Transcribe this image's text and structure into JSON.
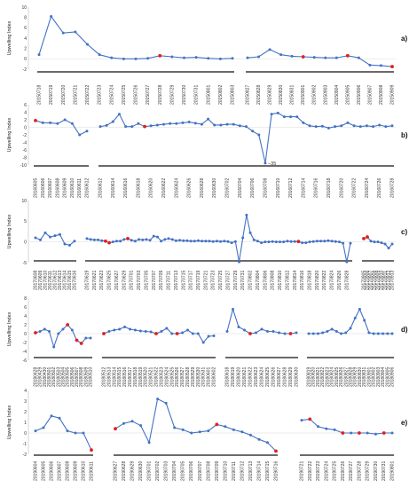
{
  "colors": {
    "line": "#4472c4",
    "marker": "#4472c4",
    "highlight": "#e02020",
    "axis": "#bbbbbb",
    "bar": "#111111"
  },
  "chart_data": [
    {
      "type": "line",
      "panel": "a)",
      "ylabel": "Upwelling Index",
      "ylim": [
        -2,
        10
      ],
      "yticks": [
        -2,
        0,
        2,
        4,
        6,
        8,
        10
      ],
      "groups": [
        {
          "dates": [
            "20150718",
            "20150719",
            "20150720",
            "20150721",
            "20150722",
            "20150723",
            "20150724",
            "20150725",
            "20150726",
            "20150727",
            "20150728",
            "20150729",
            "20150730",
            "20150731",
            "20150801",
            "20150802",
            "20150803"
          ],
          "values": [
            0.8,
            8.2,
            5,
            5.2,
            2.8,
            0.8,
            0.2,
            0,
            0,
            0.1,
            0.6,
            0.4,
            0.2,
            0.3,
            0.1,
            0,
            0.1
          ],
          "highlight": [
            10
          ]
        },
        {
          "dates": [
            "20150827",
            "20150828",
            "20150829",
            "20150830",
            "20150831",
            "20150901",
            "20150902",
            "20150903",
            "20150904",
            "20150905",
            "20150906",
            "20150907",
            "20150908",
            "20150909"
          ],
          "values": [
            0.2,
            0.4,
            1.8,
            0.8,
            0.5,
            0.4,
            0.3,
            0.2,
            0.2,
            0.6,
            0.2,
            -1.2,
            -1.3,
            -1.5
          ],
          "highlight": [
            5,
            9,
            13
          ]
        }
      ]
    },
    {
      "type": "line",
      "panel": "b)",
      "ylabel": "Upwelling Index",
      "ylim": [
        -10,
        6
      ],
      "yticks": [
        -10,
        -8,
        -6,
        -4,
        -2,
        0,
        2,
        4,
        6
      ],
      "annotation": "−35",
      "groups": [
        {
          "dates": [
            "20160605",
            "20160606",
            "20160607",
            "20160608",
            "20160609",
            "20160610",
            "20160611",
            "20160612"
          ],
          "values": [
            1.8,
            1.2,
            1.2,
            1,
            2,
            1,
            -2,
            -1
          ],
          "highlight": [
            0
          ]
        },
        {
          "dates": [
            "20160612",
            "20160613",
            "20160614",
            "20160615",
            "20160616",
            "20160617",
            "20160618",
            "20160619",
            "20160620",
            "20160621",
            "20160622",
            "20160623",
            "20160624",
            "20160625",
            "20160626",
            "20160627",
            "20160628",
            "20160629",
            "20160630",
            "20160701",
            "20160702",
            "20160703",
            "20160704",
            "20160705",
            "20160706",
            "20160707",
            "20160708",
            "20160709",
            "20160710",
            "20160711",
            "20160712",
            "20160713",
            "20160714",
            "20160715",
            "20160716",
            "20160717",
            "20160718",
            "20160719",
            "20160720",
            "20160721",
            "20160722",
            "20160723",
            "20160724",
            "20160725",
            "20160726",
            "20160727",
            "20160728"
          ],
          "values": [
            0.2,
            0.5,
            1.5,
            3.5,
            0.2,
            0.2,
            1,
            0.2,
            0.4,
            0.6,
            0.8,
            1.0,
            1.0,
            1.2,
            1.4,
            1.1,
            0.8,
            2.2,
            0.6,
            0.6,
            0.8,
            0.8,
            0.4,
            0.2,
            -1,
            -2,
            -9.5,
            3.5,
            3.8,
            2.8,
            2.8,
            2.8,
            1.2,
            0.4,
            0.2,
            0.3,
            -0.2,
            0.2,
            0.4,
            1.2,
            0.4,
            0.2,
            0.4,
            0.2,
            0.6,
            0.2,
            0.4
          ],
          "highlight": [
            7
          ]
        }
      ]
    },
    {
      "type": "line",
      "panel": "c)",
      "ylabel": "Upwelling Index",
      "ylim": [
        -5,
        10
      ],
      "yticks": [
        -5,
        0,
        5,
        10
      ],
      "groups": [
        {
          "dates": [
            "20170608",
            "20170609",
            "20170610",
            "20170611",
            "20170612",
            "20170613",
            "20170614",
            "20170615",
            "20170616"
          ],
          "values": [
            1,
            0.5,
            2.2,
            1.2,
            1.5,
            1.8,
            -0.5,
            -0.8,
            0.2
          ],
          "highlight": []
        },
        {
          "dates": [
            "20170619",
            "20170620",
            "20170621",
            "20170622",
            "20170623",
            "20170624",
            "20170625",
            "20170626",
            "20170627",
            "20170628",
            "20170629",
            "20170630",
            "20170701",
            "20170702",
            "20170703",
            "20170704",
            "20170705",
            "20170706",
            "20170707",
            "20170708",
            "20170709",
            "20170710",
            "20170711",
            "20170712",
            "20170713",
            "20170714",
            "20170715",
            "20170716",
            "20170717",
            "20170718",
            "20170719",
            "20170720",
            "20170721",
            "20170722",
            "20170723",
            "20170724",
            "20170725",
            "20170726",
            "20170727",
            "20170728",
            "20170729",
            "20170730",
            "20170731",
            "20170801",
            "20170802",
            "20170803",
            "20170804",
            "20170805",
            "20170806",
            "20170807",
            "20170808",
            "20170809",
            "20170810",
            "20170811",
            "20170812",
            "20170813",
            "20170814",
            "20170815",
            "20170816",
            "20170817",
            "20170818",
            "20170819",
            "20170820",
            "20170821",
            "20170822",
            "20170823",
            "20170824",
            "20170825",
            "20170826",
            "20170827",
            "20170828",
            "20170829"
          ],
          "values": [
            0.8,
            0.6,
            0.5,
            0.5,
            0.3,
            0.2,
            -0.2,
            0,
            0.2,
            0.2,
            0.6,
            0.8,
            0.4,
            0.2,
            0.6,
            0.5,
            0.6,
            0.4,
            1.4,
            1.2,
            0.2,
            0.6,
            0.8,
            0.6,
            0.3,
            0.4,
            0.3,
            0.3,
            0.2,
            0.2,
            0.3,
            0.2,
            0.2,
            0.2,
            0.1,
            0.2,
            0.1,
            0.2,
            0.1,
            -0.2,
            0.1,
            -4.8,
            1,
            6.5,
            2.2,
            0.5,
            0.2,
            -0.2,
            0,
            0,
            0.1,
            0,
            0,
            0,
            0.2,
            0.1,
            0.1,
            0.1,
            -0.2,
            -0.2,
            0,
            0.1,
            0.2,
            0.2,
            0.2,
            0.3,
            0.2,
            0.1,
            0,
            -0.3,
            -4.8,
            -0.3
          ],
          "highlight": [
            5,
            6,
            11,
            57
          ]
        },
        {
          "dates": [
            "20170905",
            "20170906",
            "20170907",
            "20170908",
            "20170909",
            "20170910",
            "20170911",
            "20170912",
            "20170913"
          ],
          "values": [
            0.8,
            1.2,
            0.2,
            0,
            0,
            -0.2,
            -0.5,
            -1.5,
            -0.5
          ],
          "highlight": [
            0,
            1
          ]
        }
      ]
    },
    {
      "type": "line",
      "panel": "d)",
      "ylabel": "Upwelling Index",
      "ylim": [
        -6,
        8
      ],
      "yticks": [
        -6,
        -4,
        -2,
        0,
        2,
        4,
        6,
        8
      ],
      "groups": [
        {
          "dates": [
            "20180428",
            "20180429",
            "20180430",
            "20180501",
            "20180502",
            "20180503",
            "20180504",
            "20180505",
            "20180506",
            "20180507",
            "20180508",
            "20180509",
            "20180510"
          ],
          "values": [
            0.2,
            0.5,
            1,
            0.5,
            -3,
            0,
            1,
            2,
            0.8,
            -1.5,
            -2.2,
            -1,
            -1
          ],
          "highlight": [
            0,
            7,
            9,
            10
          ]
        },
        {
          "dates": [
            "20180512",
            "20180513",
            "20180514",
            "20180515",
            "20180516",
            "20180517",
            "20180518",
            "20180519",
            "20180520",
            "20180521",
            "20180522",
            "20180523",
            "20180524",
            "20180525",
            "20180526",
            "20180527",
            "20180528",
            "20180529",
            "20180530",
            "20180531",
            "20180601",
            "20180602"
          ],
          "values": [
            0,
            0.5,
            0.8,
            1,
            1.5,
            1,
            0.8,
            0.6,
            0.5,
            0.4,
            0,
            0.5,
            1.2,
            0,
            0,
            0.2,
            0.8,
            0,
            0,
            -2,
            -0.6,
            -0.5
          ],
          "highlight": [
            0,
            10,
            14
          ]
        },
        {
          "dates": [
            "20180618",
            "20180619",
            "20180620",
            "20180621",
            "20180622",
            "20180623",
            "20180624",
            "20180625",
            "20180626",
            "20180627",
            "20180628",
            "20180629",
            "20180630"
          ],
          "values": [
            0.5,
            5.5,
            1.5,
            0.8,
            0,
            0.2,
            1,
            0.5,
            0.5,
            0.2,
            0,
            0,
            0.2
          ],
          "highlight": [
            4,
            11
          ]
        },
        {
          "dates": [
            "20180819",
            "20180820",
            "20180821",
            "20180822",
            "20180823",
            "20180824",
            "20180825",
            "20180826",
            "20180827",
            "20180828",
            "20180829",
            "20180830",
            "20180831",
            "20180901",
            "20180902",
            "20180903",
            "20180904",
            "20180905",
            "20180906"
          ],
          "values": [
            0,
            0,
            0,
            0.2,
            0.5,
            1,
            0.5,
            0,
            0.2,
            1.2,
            3.5,
            5.5,
            3,
            0.2,
            0,
            0,
            0,
            0,
            0
          ],
          "highlight": []
        }
      ]
    },
    {
      "type": "line",
      "panel": "e)",
      "ylabel": "Upwelling Index",
      "ylim": [
        -2,
        4
      ],
      "yticks": [
        -2,
        -1,
        0,
        1,
        2,
        3,
        4
      ],
      "groups": [
        {
          "dates": [
            "20190604",
            "20190605",
            "20190606",
            "20190607",
            "20190608",
            "20190609",
            "20190610",
            "20190611"
          ],
          "values": [
            0.2,
            0.5,
            1.6,
            1.4,
            0.2,
            0,
            0,
            -1.6
          ],
          "highlight": [
            7
          ]
        },
        {
          "dates": [
            "20190627",
            "20190628",
            "20190629",
            "20190630",
            "20190701",
            "20190702",
            "20190703",
            "20190704",
            "20190705",
            "20190706",
            "20190707",
            "20190708",
            "20190709",
            "20190710",
            "20190711",
            "20190712",
            "20190713",
            "20190714",
            "20190715",
            "20190716"
          ],
          "values": [
            0.4,
            0.9,
            1.1,
            0.7,
            -0.9,
            3.2,
            2.8,
            0.5,
            0.3,
            0,
            0.1,
            0.2,
            0.8,
            0.6,
            0.3,
            0.1,
            -0.2,
            -0.6,
            -0.9,
            -1.7
          ],
          "highlight": [
            0,
            12,
            19
          ]
        },
        {
          "dates": [
            "20190721",
            "20190722",
            "20190723",
            "20190724",
            "20190725",
            "20190726",
            "20190727",
            "20190728",
            "20190729",
            "20190730",
            "20190731",
            "20190801"
          ],
          "values": [
            1.2,
            1.3,
            0.6,
            0.4,
            0.3,
            0,
            0,
            0,
            0,
            -0.1,
            0,
            0
          ],
          "highlight": [
            1,
            5,
            7,
            10
          ]
        }
      ]
    }
  ]
}
